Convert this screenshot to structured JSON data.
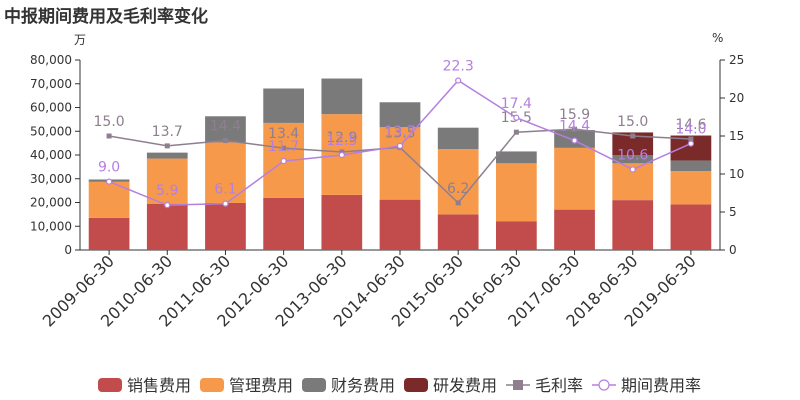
{
  "title": "中报期间费用及毛利率变化",
  "chart_data": {
    "type": "bar",
    "stacked": true,
    "title": "中报期间费用及毛利率变化",
    "ylabel_left": "万",
    "ylabel_right": "%",
    "ylim_left": [
      0,
      80000
    ],
    "ylim_right": [
      0,
      25
    ],
    "yticks_left": [
      "0",
      "10,000",
      "20,000",
      "30,000",
      "40,000",
      "50,000",
      "60,000",
      "70,000",
      "80,000"
    ],
    "yticks_right": [
      "0",
      "5",
      "10",
      "15",
      "20",
      "25"
    ],
    "categories": [
      "2009-06-30",
      "2010-06-30",
      "2011-06-30",
      "2012-06-30",
      "2013-06-30",
      "2014-06-30",
      "2015-06-30",
      "2016-06-30",
      "2017-06-30",
      "2018-06-30",
      "2019-06-30"
    ],
    "series": [
      {
        "name": "销售费用",
        "kind": "bar",
        "axis": "left",
        "color": "#c14c4b",
        "values": [
          13500,
          19500,
          19800,
          22000,
          23200,
          21200,
          15000,
          12000,
          17000,
          21000,
          19200
        ]
      },
      {
        "name": "管理费用",
        "kind": "bar",
        "axis": "left",
        "color": "#f7994b",
        "values": [
          15200,
          19000,
          25500,
          31500,
          34000,
          30500,
          27500,
          24500,
          26000,
          15500,
          14000
        ]
      },
      {
        "name": "财务费用",
        "kind": "bar",
        "axis": "left",
        "color": "#7a7a7a",
        "values": [
          1000,
          2500,
          11000,
          14500,
          15000,
          10500,
          9000,
          5000,
          7500,
          3500,
          4500
        ]
      },
      {
        "name": "研发费用",
        "kind": "bar",
        "axis": "left",
        "color": "#7b2a2a",
        "values": [
          0,
          0,
          0,
          0,
          0,
          0,
          0,
          0,
          0,
          9500,
          10500
        ]
      },
      {
        "name": "毛利率",
        "kind": "line",
        "axis": "right",
        "color": "#8e7f8f",
        "marker": "square",
        "values": [
          15.0,
          13.7,
          14.4,
          13.4,
          12.9,
          13.5,
          6.2,
          15.5,
          15.9,
          15.0,
          14.6
        ],
        "labels": [
          "15.0",
          "13.7",
          "14.4",
          "13.4",
          "12.9",
          "13.5",
          "6.2",
          "15.5",
          "15.9",
          "15.0",
          "14.6"
        ]
      },
      {
        "name": "期间费用率",
        "kind": "line",
        "axis": "right",
        "color": "#b57fe0",
        "marker": "circle",
        "values": [
          9.0,
          5.9,
          6.1,
          11.7,
          12.5,
          13.7,
          22.3,
          17.4,
          14.4,
          10.6,
          14.0
        ],
        "labels": [
          "9.0",
          "5.9",
          "6.1",
          "11.7",
          "12.5",
          "13.7",
          "22.3",
          "17.4",
          "14.4",
          "10.6",
          "14.0"
        ]
      }
    ],
    "legend_position": "bottom",
    "grid": false
  }
}
